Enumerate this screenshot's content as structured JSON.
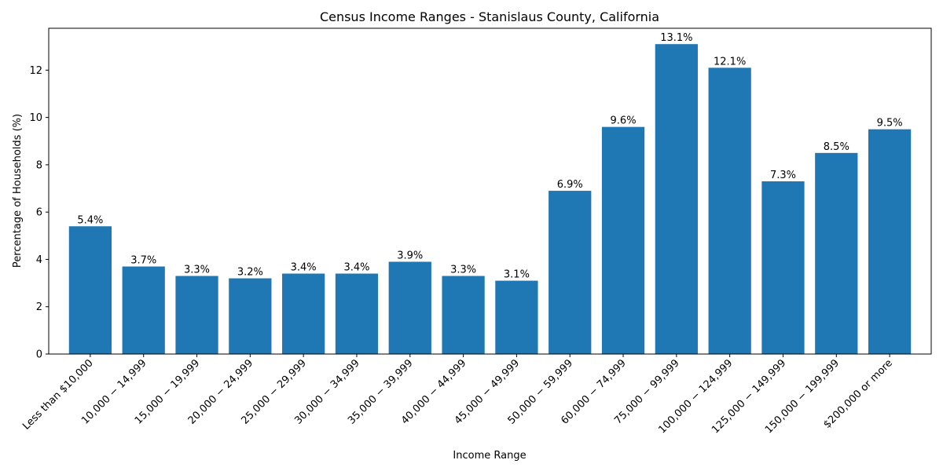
{
  "chart_data": {
    "type": "bar",
    "title": "Census Income Ranges - Stanislaus County, California",
    "xlabel": "Income Range",
    "ylabel": "Percentage of Households (%)",
    "ylim": [
      0,
      13.77
    ],
    "yticks": [
      0,
      2,
      4,
      6,
      8,
      10,
      12
    ],
    "grid": false,
    "categories": [
      "Less than $10,000",
      "10,000 − 14,999",
      "15,000 − 19,999",
      "20,000 − 24,999",
      "25,000 − 29,999",
      "30,000 − 34,999",
      "35,000 − 39,999",
      "40,000 − 44,999",
      "45,000 − 49,999",
      "50,000 − 59,999",
      "60,000 − 74,999",
      "75,000 − 99,999",
      "100,000 − 124,999",
      "125,000 − 149,999",
      "150,000 − 199,999",
      "$200,000 or more"
    ],
    "values": [
      5.4,
      3.7,
      3.3,
      3.2,
      3.4,
      3.4,
      3.9,
      3.3,
      3.1,
      6.9,
      9.6,
      13.1,
      12.1,
      7.3,
      8.5,
      9.5
    ],
    "value_labels": [
      "5.4%",
      "3.7%",
      "3.3%",
      "3.2%",
      "3.4%",
      "3.4%",
      "3.9%",
      "3.3%",
      "3.1%",
      "6.9%",
      "9.6%",
      "13.1%",
      "12.1%",
      "7.3%",
      "8.5%",
      "9.5%"
    ],
    "bar_color": "#1f77b4"
  }
}
